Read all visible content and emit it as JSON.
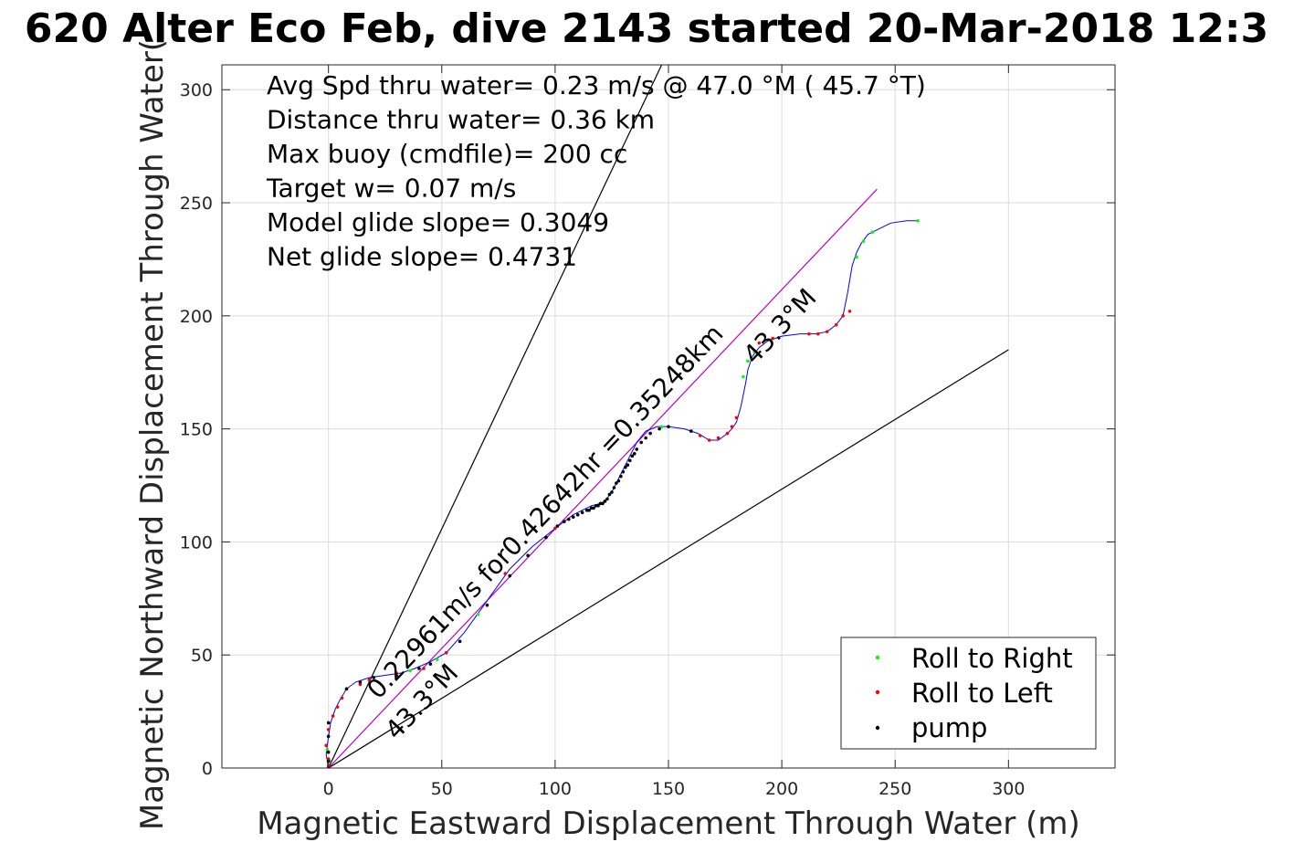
{
  "title": "620 Alter Eco Feb, dive 2143 started 20-Mar-2018 12:3",
  "chart_data": {
    "type": "scatter",
    "xlabel": "Magnetic Eastward Displacement Through Water (m)",
    "ylabel": "Magnetic Northward Displacement Through Water(",
    "xlim": [
      -47,
      347
    ],
    "ylim": [
      0,
      311
    ],
    "xticks": [
      0,
      50,
      100,
      150,
      200,
      250,
      300
    ],
    "yticks": [
      0,
      50,
      100,
      150,
      200,
      250,
      300
    ],
    "grid": true,
    "info_lines": [
      "Avg Spd thru water=  0.23 m/s @  47.0 °M ( 45.7 °T)",
      "Distance thru water=  0.36 km",
      "Max buoy (cmdfile)= 200 cc",
      "Target w= 0.07 m/s",
      "Model glide slope= 0.3049",
      "Net glide slope= 0.4731"
    ],
    "annotations": {
      "speed_label": "0.22961m/s for0.42642hr =0.35248km",
      "heading_upper": "43.3°M",
      "heading_lower": "43.3°M"
    },
    "reference_lines": [
      {
        "name": "",
        "color": "#000000",
        "x": [
          0,
          147
        ],
        "y": [
          0,
          311
        ]
      },
      {
        "name": "",
        "color": "#000000",
        "x": [
          0,
          300
        ],
        "y": [
          0,
          185
        ]
      },
      {
        "name": "",
        "color": "#bf00bf",
        "x": [
          0,
          242
        ],
        "y": [
          0,
          256
        ]
      }
    ],
    "track": {
      "color": "#0000ff",
      "x": [
        0,
        -1,
        0,
        1,
        3,
        5,
        8,
        12,
        18,
        25,
        32,
        38,
        45,
        52,
        60,
        70,
        80,
        90,
        100,
        104,
        108,
        112,
        116,
        120,
        122,
        125,
        128,
        132,
        136,
        140,
        145,
        150,
        157,
        163,
        168,
        172,
        176,
        178,
        180,
        182,
        184,
        185,
        187,
        190,
        194,
        200,
        208,
        215,
        220,
        224,
        227,
        229,
        231,
        233,
        235,
        238,
        242,
        248,
        255,
        260
      ],
      "y": [
        0,
        6,
        14,
        20,
        26,
        30,
        35,
        38,
        40,
        41,
        42,
        44,
        47,
        51,
        60,
        74,
        88,
        98,
        106,
        109,
        112,
        114,
        116,
        117,
        118,
        122,
        128,
        136,
        144,
        149,
        151,
        151,
        150,
        148,
        145,
        145,
        148,
        150,
        153,
        160,
        170,
        176,
        182,
        186,
        189,
        191,
        192,
        192,
        193,
        196,
        200,
        210,
        222,
        228,
        232,
        236,
        238,
        241,
        242,
        242
      ]
    },
    "series": [
      {
        "name": "Roll to Right",
        "color": "#00ff00",
        "x": [
          -0.5,
          0.5,
          36,
          48,
          66,
          147,
          183,
          185,
          188,
          233,
          236,
          240,
          260
        ],
        "y": [
          8,
          3,
          43,
          48,
          68,
          151,
          173,
          180,
          184,
          226,
          233,
          237,
          242
        ]
      },
      {
        "name": "Roll to Left",
        "color": "#ff0000",
        "x": [
          0,
          0,
          -1,
          0,
          2,
          4,
          6,
          8,
          14,
          18,
          30,
          42,
          52,
          78,
          100,
          164,
          168,
          172,
          176,
          178,
          180,
          190,
          196,
          212,
          216,
          220,
          224,
          227,
          230,
          0
        ],
        "y": [
          1,
          4,
          10,
          17,
          23,
          27,
          31,
          35,
          37,
          39,
          42,
          44,
          51,
          86,
          106,
          147,
          145,
          146,
          148,
          151,
          155,
          188,
          190,
          192,
          192,
          193,
          196,
          200,
          202,
          0
        ]
      },
      {
        "name": "pump",
        "color": "#000000",
        "x": [
          0,
          0,
          0,
          0,
          0,
          8,
          14,
          20,
          30,
          40,
          45,
          58,
          70,
          80,
          88,
          96,
          101,
          104,
          106,
          108,
          110,
          112,
          114,
          115,
          116,
          117,
          118,
          119,
          120,
          121,
          122,
          123,
          124,
          125,
          126,
          127,
          128,
          129,
          130,
          131,
          132,
          133,
          134,
          135,
          136,
          138,
          140,
          142,
          146,
          150,
          160
        ],
        "y": [
          0,
          3,
          7,
          14,
          20,
          35,
          38,
          40,
          41,
          44,
          46,
          56,
          72,
          85,
          94,
          102,
          107,
          109,
          110,
          111,
          112,
          113,
          114,
          114,
          115,
          115,
          116,
          116,
          117,
          117,
          118,
          119,
          121,
          122,
          124,
          126,
          127,
          129,
          131,
          133,
          134,
          136,
          138,
          139,
          141,
          144,
          146,
          148,
          150,
          151,
          149
        ]
      }
    ],
    "legend": {
      "location": "bottom-right",
      "entries": [
        "Roll to Right",
        "Roll to Left",
        "pump"
      ]
    }
  }
}
